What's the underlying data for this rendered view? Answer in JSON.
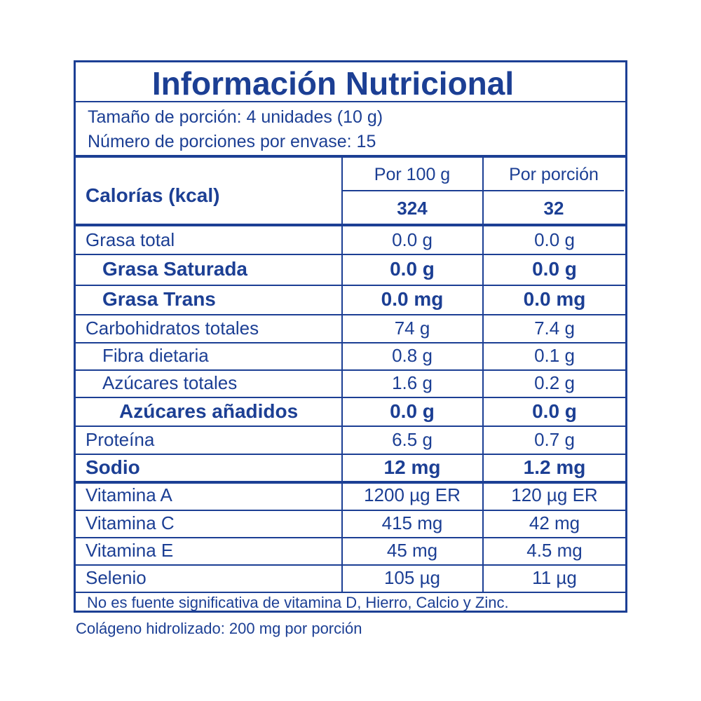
{
  "label": {
    "title": "Información Nutricional",
    "serving_size": "Tamaño de porción: 4 unidades (10 g)",
    "servings_per_container": "Número de porciones por envase: 15",
    "col_per_100g": "Por 100 g",
    "col_per_serving": "Por porción",
    "calories_label": "Calorías (kcal)",
    "calories_per_100g": "324",
    "calories_per_serving": "32",
    "rows": [
      {
        "name": "Grasa total",
        "per_100g": "0.0 g",
        "per_serving": "0.0 g",
        "bold": false,
        "indent": 0
      },
      {
        "name": "Grasa Saturada",
        "per_100g": "0.0 g",
        "per_serving": "0.0 g",
        "bold": true,
        "indent": 1
      },
      {
        "name": "Grasa Trans",
        "per_100g": "0.0 mg",
        "per_serving": "0.0 mg",
        "bold": true,
        "indent": 1
      },
      {
        "name": "Carbohidratos totales",
        "per_100g": "74 g",
        "per_serving": "7.4 g",
        "bold": false,
        "indent": 0
      },
      {
        "name": "Fibra dietaria",
        "per_100g": "0.8 g",
        "per_serving": "0.1 g",
        "bold": false,
        "indent": 1
      },
      {
        "name": "Azúcares totales",
        "per_100g": "1.6 g",
        "per_serving": "0.2 g",
        "bold": false,
        "indent": 1
      },
      {
        "name": "Azúcares añadidos",
        "per_100g": "0.0 g",
        "per_serving": "0.0 g",
        "bold": true,
        "indent": 2
      },
      {
        "name": "Proteína",
        "per_100g": "6.5 g",
        "per_serving": "0.7 g",
        "bold": false,
        "indent": 0
      },
      {
        "name": "Sodio",
        "per_100g": "12 mg",
        "per_serving": "1.2 mg",
        "bold": true,
        "indent": 0
      },
      {
        "name": "Vitamina A",
        "per_100g": "1200 µg ER",
        "per_serving": "120 µg ER",
        "bold": false,
        "indent": 0
      },
      {
        "name": "Vitamina C",
        "per_100g": "415 mg",
        "per_serving": "42 mg",
        "bold": false,
        "indent": 0
      },
      {
        "name": "Vitamina E",
        "per_100g": "45 mg",
        "per_serving": "4.5 mg",
        "bold": false,
        "indent": 0
      },
      {
        "name": "Selenio",
        "per_100g": "105 µg",
        "per_serving": "11 µg",
        "bold": false,
        "indent": 0
      }
    ],
    "note": "No es fuente significativa de vitamina D, Hierro, Calcio y Zinc."
  },
  "footer": "Colágeno hidrolizado: 200 mg por porción",
  "colors": {
    "primary": "#1c3f94",
    "background": "#ffffff"
  }
}
